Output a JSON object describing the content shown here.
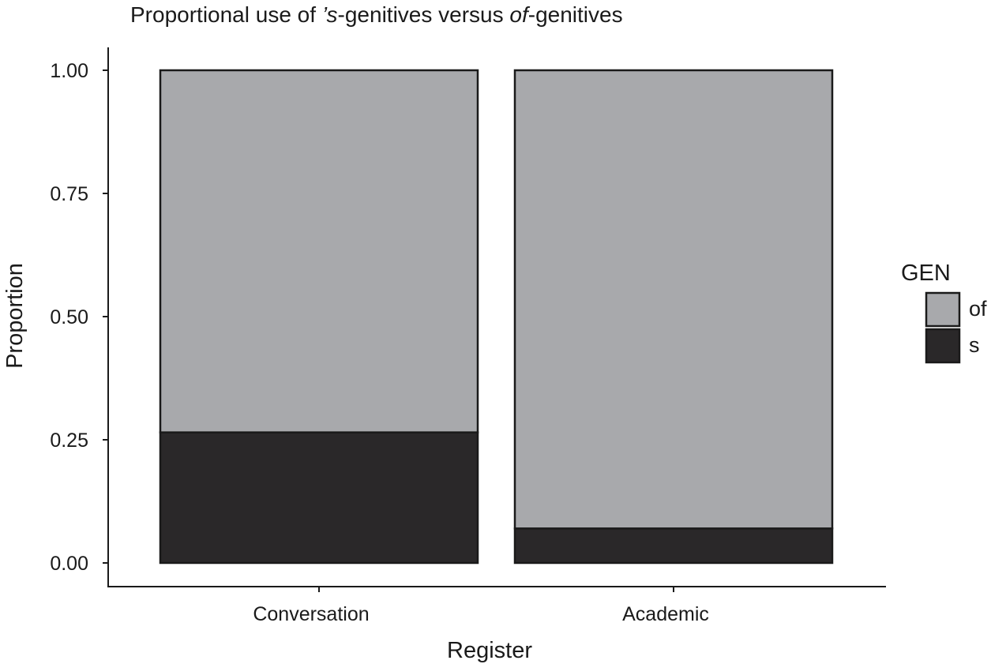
{
  "chart_data": {
    "type": "bar",
    "stacked": true,
    "title_parts": [
      {
        "text": "Proportional use of ",
        "italic": false
      },
      {
        "text": "’s",
        "italic": true
      },
      {
        "text": "-genitives versus ",
        "italic": false
      },
      {
        "text": "of",
        "italic": true
      },
      {
        "text": "-genitives",
        "italic": false
      }
    ],
    "xlabel": "Register",
    "ylabel": "Proportion",
    "categories": [
      "Conversation",
      "Academic"
    ],
    "ylim": [
      0,
      1
    ],
    "yticks": [
      "0.00",
      "0.25",
      "0.50",
      "0.75",
      "1.00"
    ],
    "ytick_values": [
      0,
      0.25,
      0.5,
      0.75,
      1
    ],
    "grid": false,
    "legend": {
      "title": "GEN",
      "position": "right",
      "entries": [
        {
          "label": "of",
          "color": "#a8a9ac"
        },
        {
          "label": "s",
          "color": "#2a2829"
        }
      ]
    },
    "series": [
      {
        "name": "s",
        "color": "#2a2829",
        "values": [
          0.265,
          0.07
        ]
      },
      {
        "name": "of",
        "color": "#a8a9ac",
        "values": [
          0.735,
          0.93
        ]
      }
    ]
  }
}
